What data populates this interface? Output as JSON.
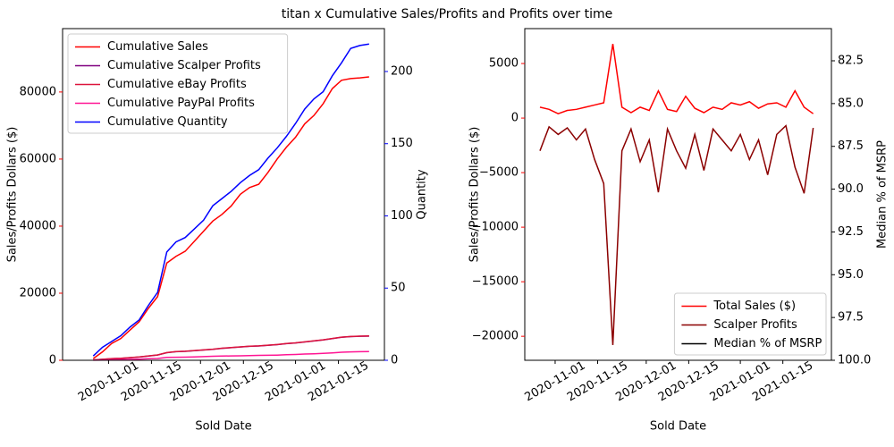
{
  "title": "titan x Cumulative Sales/Profits and Profits over time",
  "chart_data": [
    {
      "type": "line",
      "xlabel": "Sold Date",
      "ylabel": "Sales/Profits Dollars ($)",
      "y2label": "Quantity",
      "ycolor": "red",
      "y2color": "blue",
      "legend": "upper left",
      "x": [
        "2020-10-27",
        "2020-10-30",
        "2020-11-02",
        "2020-11-05",
        "2020-11-08",
        "2020-11-11",
        "2020-11-14",
        "2020-11-17",
        "2020-11-20",
        "2020-11-23",
        "2020-11-26",
        "2020-11-29",
        "2020-12-02",
        "2020-12-05",
        "2020-12-08",
        "2020-12-11",
        "2020-12-14",
        "2020-12-17",
        "2020-12-20",
        "2020-12-23",
        "2020-12-26",
        "2020-12-29",
        "2021-01-01",
        "2021-01-04",
        "2021-01-07",
        "2021-01-10",
        "2021-01-13",
        "2021-01-16",
        "2021-01-19",
        "2021-01-22",
        "2021-01-25"
      ],
      "xlim": [
        "2020-10-17",
        "2021-01-30"
      ],
      "xticks": [
        "2020-11-01",
        "2020-11-15",
        "2020-12-01",
        "2020-12-15",
        "2021-01-01",
        "2021-01-15"
      ],
      "ylim": [
        0,
        98900
      ],
      "yticks": [
        0,
        20000,
        40000,
        60000,
        80000
      ],
      "y2lim": [
        0,
        229.7
      ],
      "y2ticks": [
        0,
        50,
        100,
        150,
        200
      ],
      "series": [
        {
          "name": "Cumulative Sales",
          "color": "#ff0000",
          "values": [
            500,
            2500,
            5000,
            6500,
            9000,
            11500,
            15500,
            19000,
            29000,
            31000,
            32500,
            35500,
            38500,
            41500,
            43500,
            46000,
            49500,
            51500,
            52500,
            56000,
            60000,
            63500,
            66500,
            70500,
            73000,
            76500,
            81000,
            83500,
            84000,
            84200,
            84500
          ]
        },
        {
          "name": "Cumulative Scalper Profits",
          "color": "#800080",
          "values": [
            90,
            280,
            480,
            580,
            780,
            970,
            1270,
            1570,
            2250,
            2550,
            2650,
            2850,
            3050,
            3250,
            3550,
            3750,
            3950,
            4150,
            4250,
            4450,
            4650,
            4950,
            5150,
            5450,
            5750,
            6050,
            6450,
            6850,
            7050,
            7150,
            7200
          ]
        },
        {
          "name": "Cumulative eBay Profits",
          "color": "#dc143c",
          "values": [
            100,
            300,
            500,
            600,
            800,
            1000,
            1300,
            1600,
            2300,
            2600,
            2700,
            2900,
            3100,
            3300,
            3600,
            3800,
            4000,
            4200,
            4300,
            4500,
            4700,
            5000,
            5200,
            5500,
            5800,
            6100,
            6500,
            6900,
            7100,
            7200,
            7250
          ]
        },
        {
          "name": "Cumulative PayPal Profits",
          "color": "#ff1493",
          "values": [
            20,
            80,
            150,
            200,
            280,
            350,
            450,
            550,
            850,
            900,
            950,
            1000,
            1100,
            1200,
            1250,
            1300,
            1350,
            1400,
            1450,
            1500,
            1550,
            1650,
            1750,
            1850,
            1950,
            2050,
            2200,
            2400,
            2500,
            2550,
            2600
          ]
        },
        {
          "name": "Cumulative Quantity",
          "color": "#0000ff",
          "axis": "y2",
          "values": [
            3,
            9,
            13,
            17,
            23,
            28,
            38,
            47,
            75,
            82,
            85,
            91,
            97,
            107,
            112,
            117,
            123,
            128,
            132,
            140,
            147,
            155,
            164,
            174,
            181,
            186,
            197,
            206,
            216,
            218,
            219
          ]
        }
      ]
    },
    {
      "type": "line",
      "xlabel": "Sold Date",
      "ylabel": "Sales/Profits Dollars ($)",
      "y2label": "Median % of MSRP",
      "ycolor": "red",
      "y2color": "black",
      "legend": "lower right",
      "x": [
        "2020-10-27",
        "2020-10-30",
        "2020-11-02",
        "2020-11-05",
        "2020-11-08",
        "2020-11-11",
        "2020-11-14",
        "2020-11-17",
        "2020-11-20",
        "2020-11-23",
        "2020-11-26",
        "2020-11-29",
        "2020-12-02",
        "2020-12-05",
        "2020-12-08",
        "2020-12-11",
        "2020-12-14",
        "2020-12-17",
        "2020-12-20",
        "2020-12-23",
        "2020-12-26",
        "2020-12-29",
        "2021-01-01",
        "2021-01-04",
        "2021-01-07",
        "2021-01-10",
        "2021-01-13",
        "2021-01-16",
        "2021-01-19",
        "2021-01-22",
        "2021-01-25"
      ],
      "xlim": [
        "2020-10-22",
        "2021-01-31"
      ],
      "xticks": [
        "2020-11-01",
        "2020-11-15",
        "2020-12-01",
        "2020-12-15",
        "2021-01-01",
        "2021-01-15"
      ],
      "ylim": [
        -22200,
        8200
      ],
      "yticks": [
        {
          "value": -20000,
          "label": "−20000"
        },
        {
          "value": -15000,
          "label": "−15000"
        },
        {
          "value": -10000,
          "label": "−10000"
        },
        {
          "value": -5000,
          "label": "−5000"
        },
        0,
        5000
      ],
      "y2lim": [
        100,
        80.62
      ],
      "y2ticks": [
        82.5,
        {
          "value": 85,
          "label": "85.0"
        },
        87.5,
        {
          "value": 90,
          "label": "90.0"
        },
        92.5,
        {
          "value": 95,
          "label": "95.0"
        },
        97.5,
        {
          "value": 100,
          "label": "100.0"
        }
      ],
      "series": [
        {
          "name": "Total Sales ($)",
          "color": "#ff0000",
          "values": [
            1000,
            800,
            400,
            700,
            800,
            1000,
            1200,
            1400,
            6800,
            1000,
            500,
            1000,
            700,
            2500,
            800,
            600,
            2000,
            900,
            500,
            1000,
            800,
            1400,
            1200,
            1500,
            900,
            1300,
            1400,
            1000,
            2500,
            1000,
            400
          ]
        },
        {
          "name": "Scalper Profits",
          "color": "#8b0000",
          "values": [
            -3000,
            -800,
            -1500,
            -900,
            -2000,
            -1000,
            -3800,
            -6000,
            -20800,
            -3000,
            -1000,
            -4000,
            -2000,
            -6800,
            -1000,
            -3000,
            -4600,
            -1500,
            -4800,
            -1000,
            -2000,
            -3000,
            -1500,
            -3800,
            -2000,
            -5200,
            -1500,
            -700,
            -4500,
            -6900,
            -900
          ]
        },
        {
          "name": "Median % of MSRP",
          "color": "#000000",
          "axis": "y2",
          "values": [
            null,
            null,
            null,
            null,
            null,
            null,
            null,
            null,
            null,
            null,
            null,
            null,
            null,
            null,
            null,
            null,
            null,
            null,
            null,
            null,
            null,
            null,
            null,
            null,
            null,
            null,
            null,
            null,
            null,
            null,
            null
          ]
        }
      ]
    }
  ]
}
